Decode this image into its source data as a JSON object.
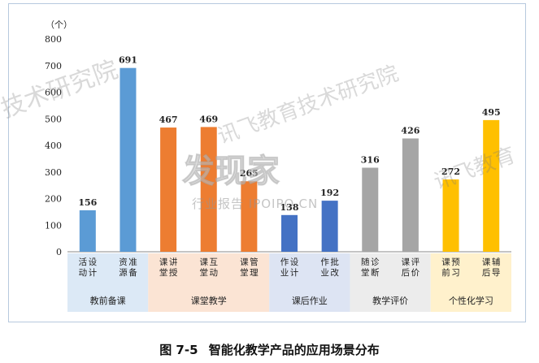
{
  "chart_data": {
    "type": "bar",
    "ylabel": "（个）",
    "ylim": [
      0,
      800
    ],
    "yticks": [
      0,
      100,
      200,
      300,
      400,
      500,
      600,
      700,
      800
    ],
    "categories": [
      "活动设计",
      "资源准备",
      "课堂讲授",
      "课堂互动",
      "课堂管理",
      "作业设计",
      "作业批改",
      "随堂诊断",
      "课后评价",
      "课前预习",
      "课后辅导"
    ],
    "values": [
      156,
      691,
      467,
      469,
      265,
      138,
      192,
      316,
      426,
      272,
      495
    ],
    "groups": [
      {
        "label": "教前备课",
        "start": 0,
        "count": 2,
        "color": "#5b9bd5",
        "band": "#dce9f6"
      },
      {
        "label": "课堂教学",
        "start": 2,
        "count": 3,
        "color": "#ed7d31",
        "band": "#fbe4d4"
      },
      {
        "label": "课后作业",
        "start": 5,
        "count": 2,
        "color": "#4472c4",
        "band": "#dde4f3"
      },
      {
        "label": "教学评价",
        "start": 7,
        "count": 2,
        "color": "#a5a5a5",
        "band": "#ececec"
      },
      {
        "label": "个性化学习",
        "start": 9,
        "count": 2,
        "color": "#ffc000",
        "band": "#fff1cc"
      }
    ],
    "grid": false,
    "legend": "none"
  },
  "caption": {
    "figure_no": "图 7-5",
    "title": "智能化教学产品的应用场景分布"
  },
  "watermarks": {
    "left": "技术研究院",
    "center_top": "讯飞教育技术研究院",
    "logo": "发现家",
    "logo_sub": "行业报告 IPOIPO.CN",
    "right": "讯飞教育"
  }
}
